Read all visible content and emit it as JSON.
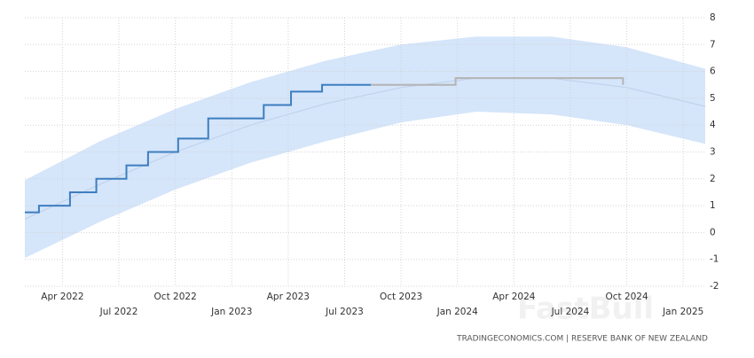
{
  "chart_data": {
    "type": "step",
    "source": "TRADINGECONOMICS.COM | RESERVE BANK OF NEW ZEALAND",
    "watermark": "FastBull",
    "xlim": [
      1.0,
      37.17
    ],
    "xticks": [
      {
        "value": 3,
        "label": "Apr 2022"
      },
      {
        "value": 6,
        "label": "Jul 2022"
      },
      {
        "value": 9,
        "label": "Oct 2022"
      },
      {
        "value": 12,
        "label": "Jan 2023"
      },
      {
        "value": 15,
        "label": "Apr 2023"
      },
      {
        "value": 18,
        "label": "Jul 2023"
      },
      {
        "value": 21,
        "label": "Oct 2023"
      },
      {
        "value": 24,
        "label": "Jan 2024"
      },
      {
        "value": 27,
        "label": "Apr 2024"
      },
      {
        "value": 30,
        "label": "Jul 2024"
      },
      {
        "value": 33,
        "label": "Oct 2024"
      },
      {
        "value": 36,
        "label": "Jan 2025"
      }
    ],
    "ylim": [
      -2,
      8
    ],
    "yticks": [
      -2,
      -1,
      0,
      1,
      2,
      3,
      4,
      5,
      6,
      7,
      8
    ],
    "grid": true,
    "band": {
      "color": "#d5e5fa",
      "x": [
        1,
        5,
        9,
        13,
        17,
        21,
        25,
        29,
        33,
        37.17
      ],
      "upper": [
        1.95,
        3.4,
        4.6,
        5.6,
        6.4,
        7.0,
        7.3,
        7.3,
        6.9,
        6.1
      ],
      "center": [
        0.5,
        1.8,
        3.0,
        4.0,
        4.8,
        5.4,
        5.75,
        5.75,
        5.4,
        4.7
      ],
      "lower": [
        -0.95,
        0.4,
        1.6,
        2.6,
        3.4,
        4.1,
        4.5,
        4.4,
        4.0,
        3.3
      ],
      "center_color": "#bcd1ea"
    },
    "series": [
      {
        "color": "#3d7ebf",
        "x": [
          1.0,
          1.75,
          3.4,
          4.8,
          6.4,
          7.55,
          9.15,
          10.75,
          13.7,
          15.15,
          16.8,
          19.4
        ],
        "values": [
          0.75,
          1,
          1.5,
          2,
          2.5,
          3,
          3.5,
          4.25,
          4.75,
          5.25,
          5.5,
          5.5
        ]
      },
      {
        "color": "#b4b4b4",
        "x": [
          19.4,
          23.9,
          32.8
        ],
        "values": [
          5.5,
          5.75,
          5.5
        ]
      }
    ]
  }
}
